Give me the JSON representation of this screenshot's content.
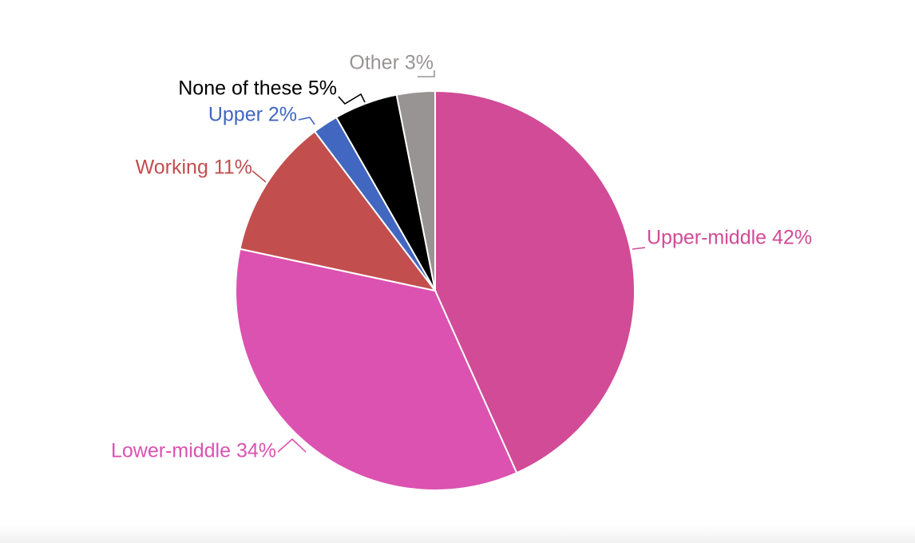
{
  "chart_data": {
    "type": "pie",
    "title": "",
    "slices": [
      {
        "label": "Upper-middle",
        "value": 42,
        "display": "Upper-middle 42%",
        "color": "#d14b97"
      },
      {
        "label": "Lower-middle",
        "value": 34,
        "display": "Lower-middle 34%",
        "color": "#dc52b0"
      },
      {
        "label": "Working",
        "value": 11,
        "display": "Working 11%",
        "color": "#c24e4e"
      },
      {
        "label": "Upper",
        "value": 2,
        "display": "Upper 2%",
        "color": "#4267c0"
      },
      {
        "label": "None of these",
        "value": 5,
        "display": "None of these 5%",
        "color": "#000000"
      },
      {
        "label": "Other",
        "value": 3,
        "display": "Other 3%",
        "color": "#999494"
      }
    ],
    "start": "12 o'clock",
    "direction": "clockwise",
    "legend": "none",
    "label_placement": "outside with leader lines"
  }
}
